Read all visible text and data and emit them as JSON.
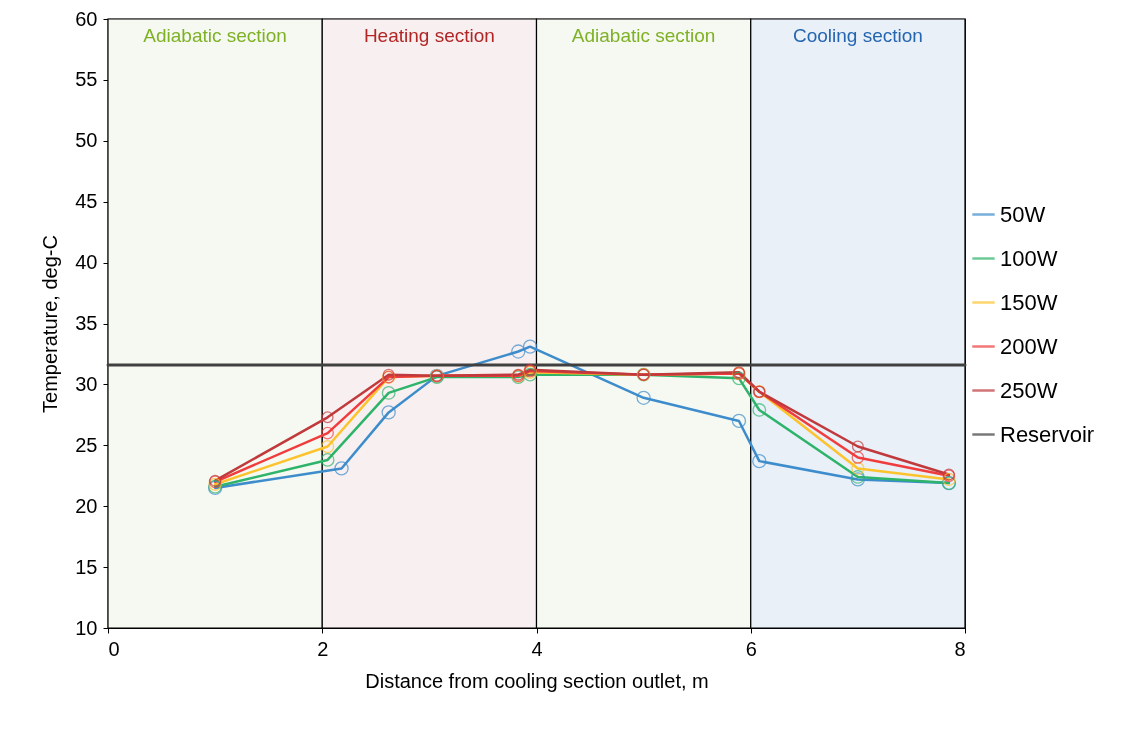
{
  "chart_data": {
    "type": "line",
    "xlabel": "Distance from cooling section outlet, m",
    "ylabel": "Temperature, deg-C",
    "xlim": [
      0,
      8
    ],
    "xticks": [
      0,
      2,
      4,
      6,
      8
    ],
    "ylim": [
      10,
      60
    ],
    "yticks": [
      10,
      15,
      20,
      25,
      30,
      35,
      40,
      45,
      50,
      55,
      60
    ],
    "grid": false,
    "legend": "right",
    "marker": "circle",
    "line_style": "solid",
    "series": [
      {
        "name": "50W",
        "color": "#3d8ccc",
        "x": [
          1,
          2.18,
          2.62,
          3.07,
          3.83,
          3.94,
          5,
          5.89,
          6.08,
          7,
          7.85
        ],
        "values": [
          21.5,
          23.1,
          27.7,
          30.7,
          32.7,
          33.1,
          28.9,
          27.0,
          23.7,
          22.2,
          21.9
        ]
      },
      {
        "name": "100W",
        "color": "#2eb36a",
        "x": [
          1,
          2.05,
          2.62,
          3.07,
          3.83,
          3.94,
          5,
          5.89,
          6.08,
          7,
          7.85
        ],
        "values": [
          21.6,
          23.8,
          29.3,
          30.6,
          30.6,
          30.8,
          30.8,
          30.5,
          27.9,
          22.4,
          21.9
        ]
      },
      {
        "name": "150W",
        "color": "#fcc32d",
        "x": [
          1,
          2.05,
          2.62,
          3.07,
          3.83,
          3.94,
          5,
          5.89,
          6.08,
          7,
          7.85
        ],
        "values": [
          21.8,
          24.9,
          30.6,
          30.7,
          30.7,
          31.0,
          30.8,
          30.9,
          29.4,
          23.1,
          22.2
        ]
      },
      {
        "name": "200W",
        "color": "#f03c3c",
        "x": [
          1,
          2.05,
          2.62,
          3.07,
          3.83,
          3.94,
          5,
          5.89,
          6.08,
          7,
          7.85
        ],
        "values": [
          22.0,
          26.0,
          30.6,
          30.7,
          30.7,
          31.1,
          30.8,
          30.9,
          29.4,
          24.0,
          22.5
        ]
      },
      {
        "name": "250W",
        "color": "#c0393c",
        "x": [
          1,
          2.05,
          2.62,
          3.07,
          3.83,
          3.94,
          5,
          5.89,
          6.08,
          7,
          7.85
        ],
        "values": [
          22.1,
          27.3,
          30.8,
          30.7,
          30.8,
          31.2,
          30.8,
          31.0,
          29.4,
          24.9,
          22.6
        ]
      },
      {
        "name": "Reservoir",
        "color": "#404040",
        "marker": "none",
        "x": [
          0,
          8
        ],
        "values": [
          31.6,
          31.6
        ]
      }
    ],
    "bands": [
      {
        "axis": "x",
        "from": 0,
        "to": 2,
        "label": "Adiabatic section",
        "color": "#f6f9f1"
      },
      {
        "axis": "x",
        "from": 2,
        "to": 4,
        "label": "Heating section",
        "color": "#f8f0f0"
      },
      {
        "axis": "x",
        "from": 4,
        "to": 6,
        "label": "Adiabatic section",
        "color": "#f6f9f1"
      },
      {
        "axis": "x",
        "from": 6,
        "to": 8,
        "label": "Cooling section",
        "color": "#e9f0f8"
      }
    ]
  }
}
